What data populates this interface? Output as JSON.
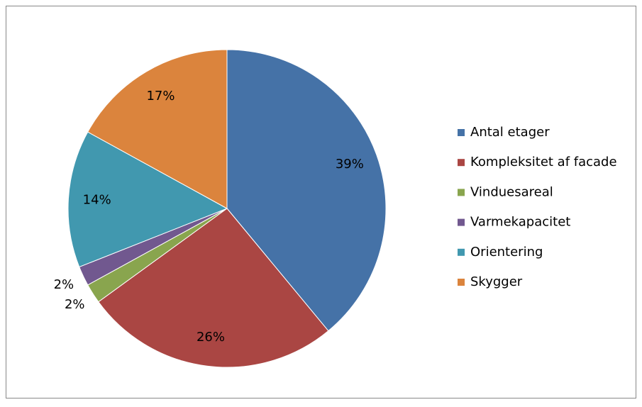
{
  "chart_data": {
    "type": "pie",
    "categories": [
      "Antal etager",
      "Kompleksitet af facade",
      "Vinduesareal",
      "Varmekapacitet",
      "Orientering",
      "Skygger"
    ],
    "values": [
      39,
      26,
      2,
      2,
      14,
      17
    ],
    "value_labels": [
      "39%",
      "26%",
      "2%",
      "2%",
      "14%",
      "17%"
    ],
    "colors": [
      "#4572a7",
      "#aa4643",
      "#89a54e",
      "#71588f",
      "#4198af",
      "#db843d"
    ],
    "legend": "right"
  }
}
